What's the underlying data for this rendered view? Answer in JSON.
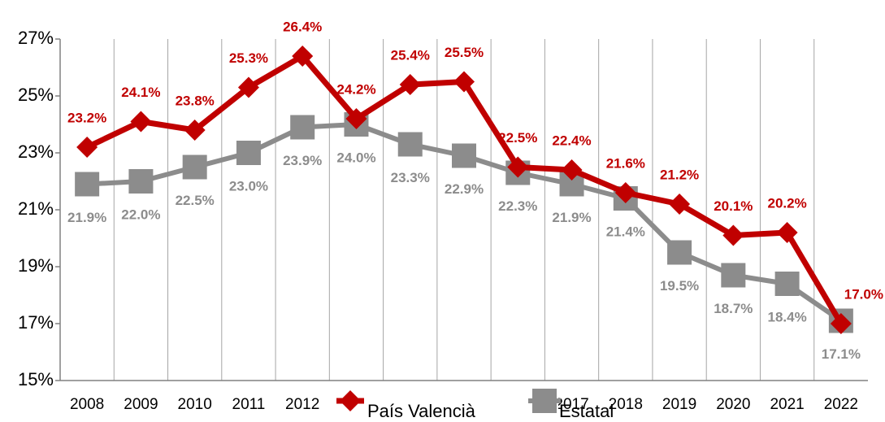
{
  "chart_data": {
    "type": "line",
    "categories": [
      "2008",
      "2009",
      "2010",
      "2011",
      "2012",
      "2013",
      "2014",
      "2015",
      "2016",
      "2017",
      "2018",
      "2019",
      "2020",
      "2021",
      "2022"
    ],
    "series": [
      {
        "name": "País Valencià",
        "color": "#c00000",
        "values": [
          23.2,
          24.1,
          23.8,
          25.3,
          26.4,
          24.2,
          25.4,
          25.5,
          22.5,
          22.4,
          21.6,
          21.2,
          20.1,
          20.2,
          17.0
        ],
        "value_labels": [
          "23.2%",
          "24.1%",
          "23.8%",
          "25.3%",
          "26.4%",
          "24.2%",
          "25.4%",
          "25.5%",
          "22.5%",
          "22.4%",
          "21.6%",
          "21.2%",
          "20.1%",
          "20.2%",
          "17.0%"
        ]
      },
      {
        "name": "Estatal",
        "color": "#8c8c8c",
        "values": [
          21.9,
          22.0,
          22.5,
          23.0,
          23.9,
          24.0,
          23.3,
          22.9,
          22.3,
          21.9,
          21.4,
          19.5,
          18.7,
          18.4,
          17.1
        ],
        "value_labels": [
          "21.9%",
          "22.0%",
          "22.5%",
          "23.0%",
          "23.9%",
          "24.0%",
          "23.3%",
          "22.9%",
          "22.3%",
          "21.9%",
          "21.4%",
          "19.5%",
          "18.7%",
          "18.4%",
          "17.1%"
        ]
      }
    ],
    "ylim": [
      15,
      27
    ],
    "yticks": [
      {
        "value": 15,
        "label": "15%"
      },
      {
        "value": 17,
        "label": "17%"
      },
      {
        "value": 19,
        "label": "19%"
      },
      {
        "value": 21,
        "label": "21%"
      },
      {
        "value": 23,
        "label": "23%"
      },
      {
        "value": 25,
        "label": "25%"
      },
      {
        "value": 27,
        "label": "27%"
      }
    ],
    "grid": "x",
    "legend": "bottom"
  }
}
